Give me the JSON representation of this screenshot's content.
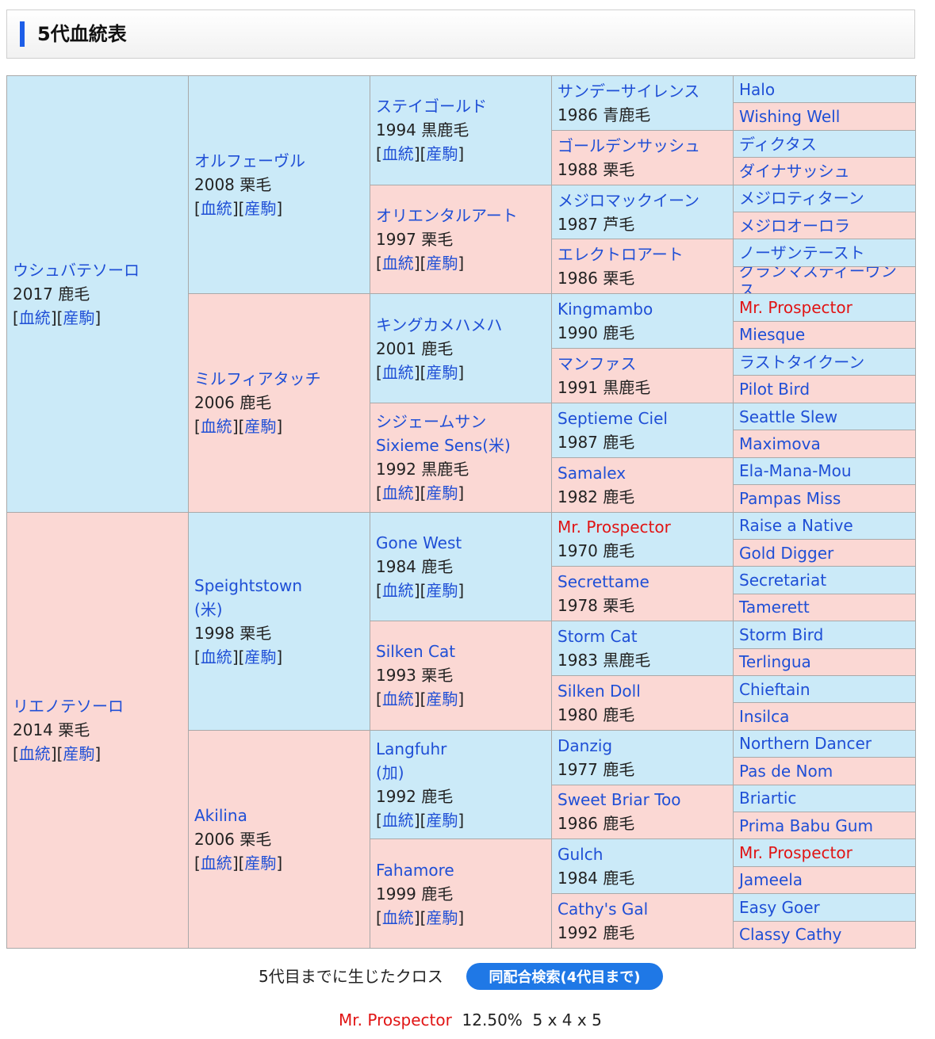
{
  "header": {
    "title": "5代血統表"
  },
  "link_labels": {
    "pedigree": "血統",
    "offspring": "産駒"
  },
  "gen1": [
    {
      "name": "ウシュバテソーロ",
      "info": "2017 鹿毛",
      "sex": "male"
    },
    {
      "name": "リエノテソーロ",
      "info": "2014 栗毛",
      "sex": "female"
    }
  ],
  "gen2": [
    {
      "name": "オルフェーヴル",
      "info": "2008 栗毛",
      "sex": "male"
    },
    {
      "name": "ミルフィアタッチ",
      "info": "2006 鹿毛",
      "sex": "female"
    },
    {
      "name": "Speightstown\n(米)",
      "info": "1998 栗毛",
      "sex": "male"
    },
    {
      "name": "Akilina",
      "info": "2006 栗毛",
      "sex": "female"
    }
  ],
  "gen3": [
    {
      "name": "ステイゴールド",
      "info": "1994 黒鹿毛",
      "sex": "male"
    },
    {
      "name": "オリエンタルアート",
      "info": "1997 栗毛",
      "sex": "female"
    },
    {
      "name": "キングカメハメハ",
      "info": "2001 鹿毛",
      "sex": "male"
    },
    {
      "name": "シジェームサン\nSixieme Sens(米)",
      "info": "1992 黒鹿毛",
      "sex": "female"
    },
    {
      "name": "Gone West",
      "info": "1984 鹿毛",
      "sex": "male"
    },
    {
      "name": "Silken Cat",
      "info": "1993 栗毛",
      "sex": "female"
    },
    {
      "name": "Langfuhr\n(加)",
      "info": "1992 鹿毛",
      "sex": "male"
    },
    {
      "name": "Fahamore",
      "info": "1999 鹿毛",
      "sex": "female"
    }
  ],
  "gen4": [
    {
      "name": "サンデーサイレンス",
      "info": "1986 青鹿毛",
      "sex": "male"
    },
    {
      "name": "ゴールデンサッシュ",
      "info": "1988 栗毛",
      "sex": "female"
    },
    {
      "name": "メジロマックイーン",
      "info": "1987 芦毛",
      "sex": "male"
    },
    {
      "name": "エレクトロアート",
      "info": "1986 栗毛",
      "sex": "female"
    },
    {
      "name": "Kingmambo",
      "info": "1990 鹿毛",
      "sex": "male"
    },
    {
      "name": "マンファス",
      "info": "1991 黒鹿毛",
      "sex": "female"
    },
    {
      "name": "Septieme Ciel",
      "info": "1987 鹿毛",
      "sex": "male"
    },
    {
      "name": "Samalex",
      "info": "1982 鹿毛",
      "sex": "female"
    },
    {
      "name": "Mr. Prospector",
      "info": "1970 鹿毛",
      "sex": "male",
      "cross": true
    },
    {
      "name": "Secrettame",
      "info": "1978 栗毛",
      "sex": "female"
    },
    {
      "name": "Storm Cat",
      "info": "1983 黒鹿毛",
      "sex": "male"
    },
    {
      "name": "Silken Doll",
      "info": "1980 鹿毛",
      "sex": "female"
    },
    {
      "name": "Danzig",
      "info": "1977 鹿毛",
      "sex": "male"
    },
    {
      "name": "Sweet Briar Too",
      "info": "1986 鹿毛",
      "sex": "female"
    },
    {
      "name": "Gulch",
      "info": "1984 鹿毛",
      "sex": "male"
    },
    {
      "name": "Cathy's Gal",
      "info": "1992 鹿毛",
      "sex": "female"
    }
  ],
  "gen5": [
    {
      "name": "Halo",
      "sex": "male"
    },
    {
      "name": "Wishing Well",
      "sex": "female"
    },
    {
      "name": "ディクタス",
      "sex": "male"
    },
    {
      "name": "ダイナサッシュ",
      "sex": "female"
    },
    {
      "name": "メジロティターン",
      "sex": "male"
    },
    {
      "name": "メジロオーロラ",
      "sex": "female"
    },
    {
      "name": "ノーザンテースト",
      "sex": "male"
    },
    {
      "name": "グランマスティーヴンス",
      "sex": "female"
    },
    {
      "name": "Mr. Prospector",
      "sex": "male",
      "cross": true
    },
    {
      "name": "Miesque",
      "sex": "female"
    },
    {
      "name": "ラストタイクーン",
      "sex": "male"
    },
    {
      "name": "Pilot Bird",
      "sex": "female"
    },
    {
      "name": "Seattle Slew",
      "sex": "male"
    },
    {
      "name": "Maximova",
      "sex": "female"
    },
    {
      "name": "Ela-Mana-Mou",
      "sex": "male"
    },
    {
      "name": "Pampas Miss",
      "sex": "female"
    },
    {
      "name": "Raise a Native",
      "sex": "male"
    },
    {
      "name": "Gold Digger",
      "sex": "female"
    },
    {
      "name": "Secretariat",
      "sex": "male"
    },
    {
      "name": "Tamerett",
      "sex": "female"
    },
    {
      "name": "Storm Bird",
      "sex": "male"
    },
    {
      "name": "Terlingua",
      "sex": "female"
    },
    {
      "name": "Chieftain",
      "sex": "male"
    },
    {
      "name": "Insilca",
      "sex": "female"
    },
    {
      "name": "Northern Dancer",
      "sex": "male"
    },
    {
      "name": "Pas de Nom",
      "sex": "female"
    },
    {
      "name": "Briartic",
      "sex": "male"
    },
    {
      "name": "Prima Babu Gum",
      "sex": "female"
    },
    {
      "name": "Mr. Prospector",
      "sex": "male",
      "cross": true
    },
    {
      "name": "Jameela",
      "sex": "female"
    },
    {
      "name": "Easy Goer",
      "sex": "male"
    },
    {
      "name": "Classy Cathy",
      "sex": "female"
    }
  ],
  "cross": {
    "label": "5代目までに生じたクロス",
    "search_button": "同配合検索(4代目まで)",
    "horse": "Mr. Prospector",
    "percent": "12.50%",
    "pattern": "5 x 4 x 5"
  },
  "colors": {
    "male_bg": "#cbeaf8",
    "female_bg": "#fbd8d4",
    "link": "#1f4fd6",
    "cross": "#e11414",
    "accent": "#1d5ee8"
  }
}
